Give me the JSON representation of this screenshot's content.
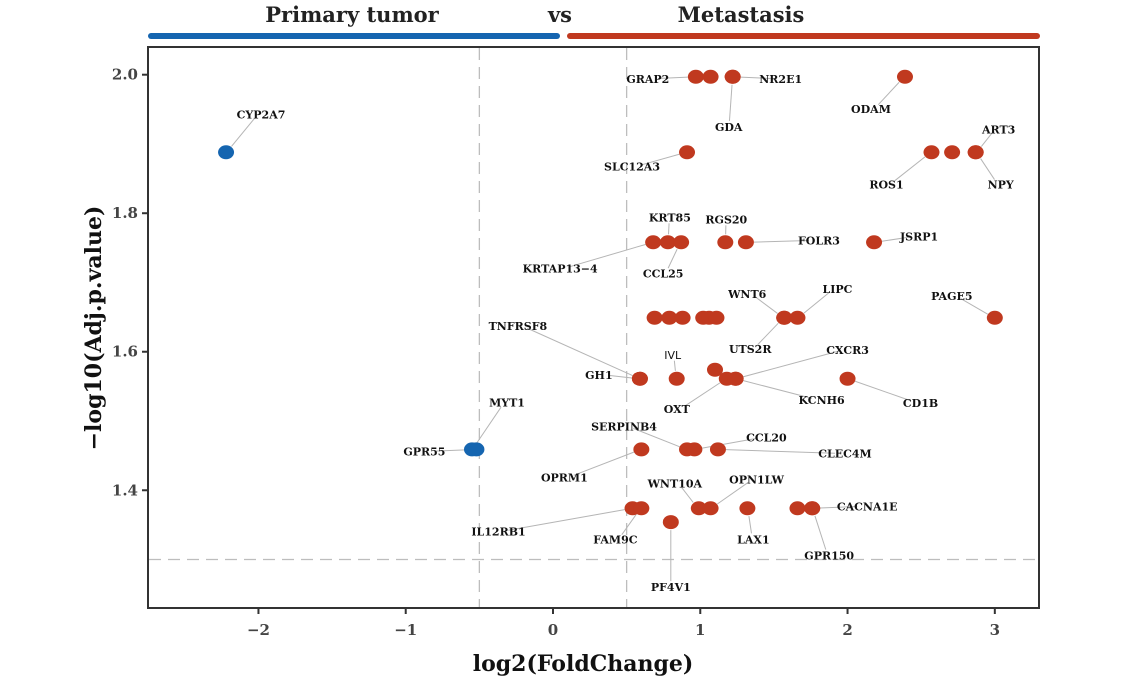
{
  "header": {
    "left_label": "Primary tumor",
    "middle_label": "vs",
    "right_label": "Metastasis"
  },
  "colors": {
    "up": "#c0391f",
    "down": "#1565b0",
    "threshold_line": "#bdbdbd",
    "frame": "#333333"
  },
  "chart_data": {
    "type": "scatter",
    "title": "",
    "xlabel": "log2(FoldChange)",
    "ylabel": "−log10(Adj.p.value)",
    "xlim": [
      -2.75,
      3.3
    ],
    "ylim": [
      1.23,
      2.04
    ],
    "xticks": [
      -2,
      -1,
      0,
      1,
      2,
      3
    ],
    "xtick_labels": [
      "−2",
      "−1",
      "0",
      "1",
      "2",
      "3"
    ],
    "yticks": [
      1.4,
      1.6,
      1.8,
      2.0
    ],
    "ytick_labels": [
      "1.4",
      "1.6",
      "1.8",
      "2.0"
    ],
    "threshold_x": [
      -0.5,
      0.5
    ],
    "threshold_y": 1.3,
    "grid": false,
    "points": [
      {
        "x": -2.22,
        "y": 1.888,
        "group": "down",
        "label": "CYP2A7"
      },
      {
        "x": -0.55,
        "y": 1.459,
        "group": "down",
        "label": "MYT1"
      },
      {
        "x": -0.52,
        "y": 1.459,
        "group": "down",
        "label": "GPR55"
      },
      {
        "x": 0.97,
        "y": 1.997,
        "group": "up",
        "label": "GRAP2"
      },
      {
        "x": 1.07,
        "y": 1.997,
        "group": "up",
        "label": ""
      },
      {
        "x": 1.22,
        "y": 1.997,
        "group": "up",
        "label": "NR2E1"
      },
      {
        "x": 1.22,
        "y": 1.997,
        "group": "up",
        "label": "GDA"
      },
      {
        "x": 2.39,
        "y": 1.997,
        "group": "up",
        "label": "ODAM"
      },
      {
        "x": 0.91,
        "y": 1.888,
        "group": "up",
        "label": "SLC12A3"
      },
      {
        "x": 2.57,
        "y": 1.888,
        "group": "up",
        "label": "ROS1"
      },
      {
        "x": 2.71,
        "y": 1.888,
        "group": "up",
        "label": ""
      },
      {
        "x": 2.87,
        "y": 1.888,
        "group": "up",
        "label": "ART3"
      },
      {
        "x": 2.87,
        "y": 1.888,
        "group": "up",
        "label": "NPY"
      },
      {
        "x": 0.68,
        "y": 1.758,
        "group": "up",
        "label": "KRTAP13−4"
      },
      {
        "x": 0.78,
        "y": 1.758,
        "group": "up",
        "label": "KRT85"
      },
      {
        "x": 0.87,
        "y": 1.758,
        "group": "up",
        "label": "CCL25"
      },
      {
        "x": 1.17,
        "y": 1.758,
        "group": "up",
        "label": "RGS20"
      },
      {
        "x": 1.31,
        "y": 1.758,
        "group": "up",
        "label": "FOLR3"
      },
      {
        "x": 2.18,
        "y": 1.758,
        "group": "up",
        "label": "JSRP1"
      },
      {
        "x": 0.69,
        "y": 1.649,
        "group": "up",
        "label": ""
      },
      {
        "x": 0.79,
        "y": 1.649,
        "group": "up",
        "label": ""
      },
      {
        "x": 0.88,
        "y": 1.649,
        "group": "up",
        "label": ""
      },
      {
        "x": 1.02,
        "y": 1.649,
        "group": "up",
        "label": ""
      },
      {
        "x": 1.06,
        "y": 1.649,
        "group": "up",
        "label": ""
      },
      {
        "x": 1.11,
        "y": 1.649,
        "group": "up",
        "label": ""
      },
      {
        "x": 1.57,
        "y": 1.649,
        "group": "up",
        "label": "WNT6"
      },
      {
        "x": 1.57,
        "y": 1.649,
        "group": "up",
        "label": "UTS2R"
      },
      {
        "x": 1.66,
        "y": 1.649,
        "group": "up",
        "label": "LIPC"
      },
      {
        "x": 3.0,
        "y": 1.649,
        "group": "up",
        "label": "PAGE5"
      },
      {
        "x": 1.1,
        "y": 1.574,
        "group": "up",
        "label": ""
      },
      {
        "x": 0.59,
        "y": 1.561,
        "group": "up",
        "label": "GH1"
      },
      {
        "x": 0.59,
        "y": 1.561,
        "group": "up",
        "label": "TNFRSF8"
      },
      {
        "x": 0.84,
        "y": 1.561,
        "group": "up",
        "label": "IVL"
      },
      {
        "x": 1.18,
        "y": 1.561,
        "group": "up",
        "label": "OXT"
      },
      {
        "x": 1.24,
        "y": 1.561,
        "group": "up",
        "label": "CXCR3"
      },
      {
        "x": 1.24,
        "y": 1.561,
        "group": "up",
        "label": "KCNH6"
      },
      {
        "x": 2.0,
        "y": 1.561,
        "group": "up",
        "label": "CD1B"
      },
      {
        "x": 0.6,
        "y": 1.459,
        "group": "up",
        "label": "OPRM1"
      },
      {
        "x": 0.91,
        "y": 1.459,
        "group": "up",
        "label": "SERPINB4"
      },
      {
        "x": 0.96,
        "y": 1.459,
        "group": "up",
        "label": "CCL20"
      },
      {
        "x": 1.12,
        "y": 1.459,
        "group": "up",
        "label": "CLEC4M"
      },
      {
        "x": 0.54,
        "y": 1.374,
        "group": "up",
        "label": "IL12RB1"
      },
      {
        "x": 0.6,
        "y": 1.374,
        "group": "up",
        "label": "FAM9C"
      },
      {
        "x": 0.99,
        "y": 1.374,
        "group": "up",
        "label": "WNT10A"
      },
      {
        "x": 1.07,
        "y": 1.374,
        "group": "up",
        "label": "OPN1LW"
      },
      {
        "x": 1.32,
        "y": 1.374,
        "group": "up",
        "label": "LAX1"
      },
      {
        "x": 1.66,
        "y": 1.374,
        "group": "up",
        "label": ""
      },
      {
        "x": 1.76,
        "y": 1.374,
        "group": "up",
        "label": "CACNA1E"
      },
      {
        "x": 1.76,
        "y": 1.374,
        "group": "up",
        "label": "GPR150"
      },
      {
        "x": 0.8,
        "y": 1.354,
        "group": "up",
        "label": "PF4V1"
      }
    ]
  }
}
